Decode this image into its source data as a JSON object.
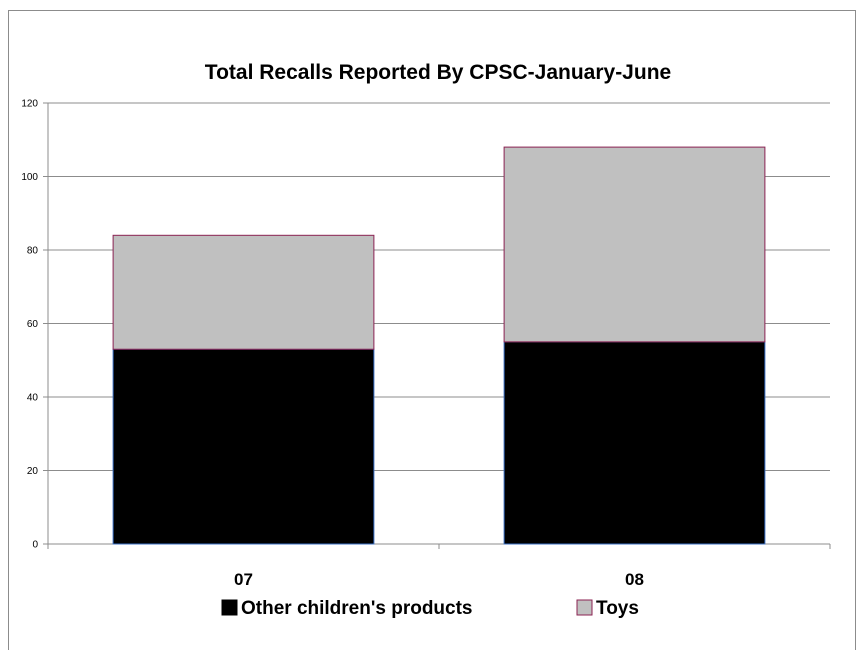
{
  "chart_data": {
    "type": "bar",
    "stacked": true,
    "title": "Total Recalls Reported By CPSC-January-June",
    "categories": [
      "07",
      "08"
    ],
    "series": [
      {
        "name": "Other children's products",
        "values": [
          53,
          55
        ],
        "color": "#000000",
        "edge": "#3a6fc4"
      },
      {
        "name": "Toys",
        "values": [
          31,
          53
        ],
        "color": "#c0c0c0",
        "edge": "#8b2252"
      }
    ],
    "ylim": [
      0,
      120
    ],
    "yticks": [
      0,
      20,
      40,
      60,
      80,
      100,
      120
    ],
    "grid": true,
    "legend": "bottom"
  }
}
